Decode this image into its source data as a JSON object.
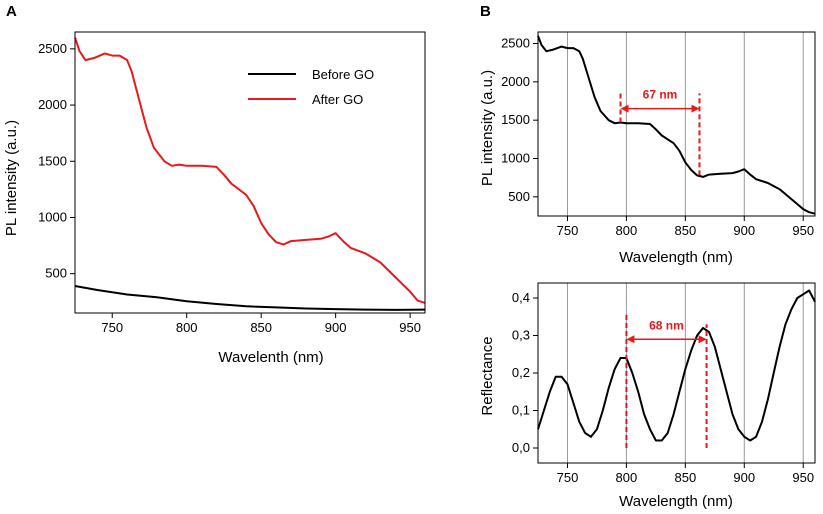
{
  "colors": {
    "black": "#000000",
    "red": "#e8191b",
    "grid": "#999999",
    "annotation": "#e8191b"
  },
  "chart_data": [
    {
      "id": "A",
      "panel_label": "A",
      "type": "line",
      "xlabel": "Wavelenth (nm)",
      "ylabel": "PL intensity (a.u.)",
      "xlim": [
        725,
        960
      ],
      "ylim": [
        150,
        2650
      ],
      "xticks": [
        750,
        800,
        850,
        900,
        950
      ],
      "yticks": [
        500,
        1000,
        1500,
        2000,
        2500
      ],
      "grid": false,
      "legend_position": "top-right",
      "series": [
        {
          "name": "Before GO",
          "color": "#000000",
          "x": [
            725,
            740,
            760,
            780,
            800,
            820,
            840,
            860,
            880,
            900,
            920,
            940,
            960
          ],
          "y": [
            390,
            355,
            315,
            290,
            255,
            230,
            210,
            200,
            190,
            185,
            180,
            178,
            180
          ]
        },
        {
          "name": "After GO",
          "color": "#e8191b",
          "x": [
            725,
            728,
            732,
            738,
            745,
            750,
            755,
            760,
            763,
            768,
            773,
            778,
            785,
            790,
            795,
            800,
            810,
            820,
            825,
            830,
            840,
            845,
            850,
            855,
            860,
            865,
            870,
            880,
            890,
            895,
            900,
            905,
            910,
            920,
            930,
            940,
            950,
            955,
            960
          ],
          "y": [
            2600,
            2480,
            2400,
            2420,
            2460,
            2440,
            2440,
            2400,
            2300,
            2050,
            1800,
            1620,
            1500,
            1460,
            1470,
            1460,
            1460,
            1450,
            1380,
            1300,
            1200,
            1100,
            950,
            850,
            780,
            760,
            790,
            800,
            810,
            830,
            860,
            790,
            730,
            680,
            600,
            470,
            340,
            260,
            240
          ]
        }
      ]
    },
    {
      "id": "B1",
      "panel_label": "B",
      "type": "line",
      "xlabel": "Wavelength (nm)",
      "ylabel": "PL intensity (a.u.)",
      "xlim": [
        725,
        960
      ],
      "ylim": [
        250,
        2650
      ],
      "xticks": [
        750,
        800,
        850,
        900,
        950
      ],
      "yticks": [
        500,
        1000,
        1500,
        2000,
        2500
      ],
      "gridlines_x": [
        750,
        800,
        850,
        900,
        950
      ],
      "grid": true,
      "series": [
        {
          "name": "PL",
          "color": "#000000",
          "x": [
            725,
            728,
            732,
            738,
            745,
            750,
            755,
            760,
            763,
            768,
            773,
            778,
            785,
            790,
            795,
            800,
            810,
            820,
            825,
            830,
            840,
            845,
            850,
            855,
            860,
            865,
            870,
            880,
            890,
            895,
            900,
            905,
            910,
            920,
            930,
            940,
            950,
            955,
            960
          ],
          "y": [
            2600,
            2480,
            2400,
            2420,
            2460,
            2440,
            2440,
            2400,
            2300,
            2050,
            1800,
            1620,
            1500,
            1460,
            1470,
            1460,
            1460,
            1450,
            1380,
            1300,
            1200,
            1100,
            950,
            850,
            780,
            760,
            790,
            800,
            810,
            830,
            860,
            790,
            730,
            680,
            600,
            470,
            340,
            300,
            280
          ]
        }
      ],
      "annotation": {
        "text": "67 nm",
        "x1": 795,
        "x2": 862,
        "arrow_y": 1650,
        "line1_y": [
          1470,
          1850
        ],
        "line2_y": [
          780,
          1850
        ]
      }
    },
    {
      "id": "B2",
      "panel_label": "",
      "type": "line",
      "xlabel": "Wavelength (nm)",
      "ylabel": "Reflectance",
      "xlim": [
        725,
        960
      ],
      "ylim": [
        -0.04,
        0.44
      ],
      "xticks": [
        750,
        800,
        850,
        900,
        950
      ],
      "yticks": [
        0.0,
        0.1,
        0.2,
        0.3,
        0.4
      ],
      "ytick_labels": [
        "0,0",
        "0,1",
        "0,2",
        "0,3",
        "0,4"
      ],
      "gridlines_x": [
        750,
        800,
        850,
        900,
        950
      ],
      "grid": true,
      "series": [
        {
          "name": "Reflectance",
          "color": "#000000",
          "x": [
            725,
            730,
            735,
            740,
            745,
            750,
            755,
            760,
            765,
            770,
            775,
            780,
            785,
            790,
            795,
            800,
            805,
            810,
            815,
            820,
            825,
            830,
            835,
            840,
            845,
            850,
            855,
            860,
            865,
            870,
            875,
            880,
            885,
            890,
            895,
            900,
            905,
            910,
            915,
            920,
            925,
            930,
            935,
            940,
            945,
            950,
            955,
            960
          ],
          "y": [
            0.05,
            0.1,
            0.15,
            0.19,
            0.19,
            0.17,
            0.12,
            0.07,
            0.04,
            0.03,
            0.05,
            0.1,
            0.16,
            0.21,
            0.24,
            0.24,
            0.2,
            0.15,
            0.09,
            0.05,
            0.02,
            0.02,
            0.04,
            0.09,
            0.15,
            0.21,
            0.26,
            0.3,
            0.32,
            0.31,
            0.27,
            0.21,
            0.15,
            0.09,
            0.05,
            0.03,
            0.02,
            0.03,
            0.07,
            0.13,
            0.2,
            0.27,
            0.33,
            0.37,
            0.4,
            0.41,
            0.42,
            0.39
          ]
        }
      ],
      "annotation": {
        "text": "68 nm",
        "x1": 800,
        "x2": 868,
        "arrow_y": 0.29,
        "line1_y": [
          0.0,
          0.36
        ],
        "line2_y": [
          0.0,
          0.33
        ]
      }
    }
  ]
}
